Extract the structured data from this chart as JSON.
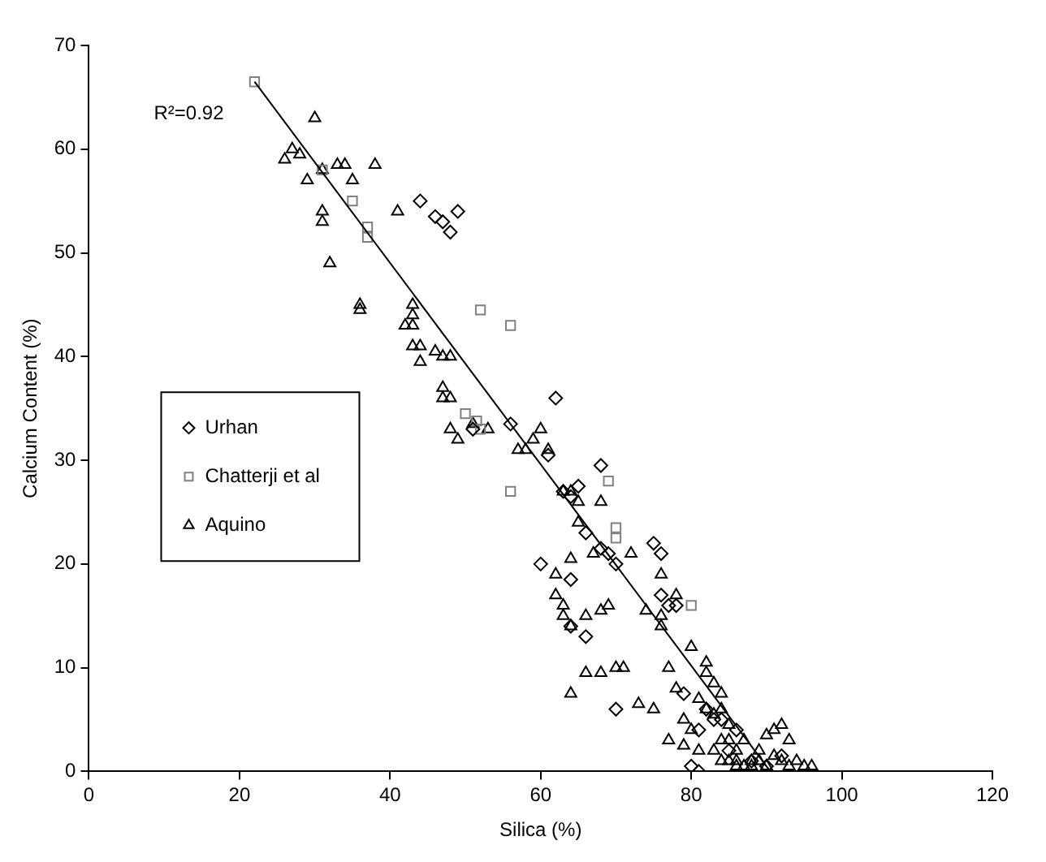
{
  "chart_data": {
    "type": "scatter",
    "xlabel": "Silica (%)",
    "ylabel": "Calcium Content (%)",
    "annotations": [
      "R²=0.92"
    ],
    "xlim": [
      0,
      120
    ],
    "xticks": [
      0,
      20,
      40,
      60,
      80,
      100,
      120
    ],
    "ylim": [
      0,
      70
    ],
    "yticks": [
      0,
      10,
      20,
      30,
      40,
      50,
      60,
      70
    ],
    "grid": false,
    "legend": "left",
    "series": [
      {
        "name": "Urhan",
        "color": "#000000",
        "marker": "diamond",
        "x": [
          44,
          46,
          47,
          48,
          49,
          51,
          56,
          60,
          61,
          62,
          63,
          64,
          64,
          64,
          65,
          66,
          66,
          68,
          68,
          69,
          70,
          70,
          75,
          76,
          76,
          77,
          78,
          79,
          80,
          81,
          81,
          82,
          83,
          84,
          85,
          86,
          88,
          90,
          92
        ],
        "values": [
          55,
          53.5,
          53,
          52,
          54,
          33,
          33.5,
          20,
          30.5,
          36,
          27,
          26.5,
          18.5,
          14,
          27.5,
          23,
          13,
          29.5,
          21.5,
          21,
          6,
          20,
          22,
          21,
          17,
          16,
          16,
          7.5,
          0.5,
          0,
          4,
          6,
          5,
          5,
          2,
          4,
          1,
          0.5,
          1.5
        ]
      },
      {
        "name": "Chatterji et al",
        "color": "#808080",
        "marker": "square",
        "x": [
          22,
          31,
          35,
          37,
          37,
          50,
          51.5,
          52,
          52,
          56,
          56,
          69,
          70,
          70,
          80
        ],
        "values": [
          66.5,
          58,
          55,
          52.5,
          51.5,
          34.5,
          33.8,
          44.5,
          33,
          43,
          27,
          28,
          23.5,
          22.5,
          16
        ]
      },
      {
        "name": "Aquino",
        "color": "#000000",
        "marker": "triangle",
        "x": [
          26,
          27,
          28,
          29,
          30,
          31,
          31,
          31,
          32,
          33,
          34,
          35,
          36,
          36,
          38,
          41,
          42,
          43,
          43,
          43,
          43,
          44,
          44,
          46,
          47,
          47,
          47,
          48,
          48,
          48,
          49,
          51,
          53,
          57,
          58,
          59,
          60,
          61,
          62,
          62,
          63,
          63,
          63,
          64,
          64,
          64,
          64,
          65,
          65,
          66,
          66,
          67,
          68,
          68,
          68,
          69,
          70,
          71,
          72,
          73,
          74,
          75,
          76,
          76,
          76,
          77,
          77,
          78,
          78,
          79,
          79,
          80,
          80,
          81,
          81,
          82,
          82,
          82,
          83,
          83,
          83,
          84,
          84,
          84,
          84,
          85,
          85,
          85,
          86,
          86,
          86,
          87,
          87,
          88,
          88,
          89,
          89,
          90,
          90,
          91,
          91,
          92,
          92,
          93,
          93,
          94,
          95,
          96
        ],
        "values": [
          59,
          60,
          59.5,
          57,
          63,
          58,
          54,
          53,
          49,
          58.5,
          58.5,
          57,
          45,
          44.5,
          58.5,
          54,
          43,
          45,
          44,
          43,
          41,
          41,
          39.5,
          40.5,
          40,
          36,
          37,
          36,
          33,
          40,
          32,
          33.5,
          33,
          31,
          31,
          32,
          33,
          31,
          19,
          17,
          27,
          16,
          15,
          27,
          7.5,
          20.5,
          14,
          26,
          24,
          15,
          9.5,
          21,
          15.5,
          9.5,
          26,
          16,
          10,
          10,
          21,
          6.5,
          15.5,
          6,
          15,
          14,
          19,
          10,
          3,
          17,
          8,
          5,
          2.5,
          12,
          4,
          2,
          7,
          10.5,
          9.5,
          6,
          8.5,
          5.5,
          2,
          3,
          6,
          7.5,
          1,
          1,
          4.5,
          3,
          2,
          1,
          0.5,
          3,
          0.5,
          1,
          0.5,
          2,
          1,
          0.5,
          3.5,
          4,
          1.5,
          4.5,
          1,
          3,
          0.5,
          1,
          0.5,
          0.5
        ]
      },
      {
        "type": "line",
        "color": "#000000",
        "marker": "none",
        "x": [
          22,
          90.5
        ],
        "values": [
          66.5,
          0
        ]
      }
    ]
  }
}
